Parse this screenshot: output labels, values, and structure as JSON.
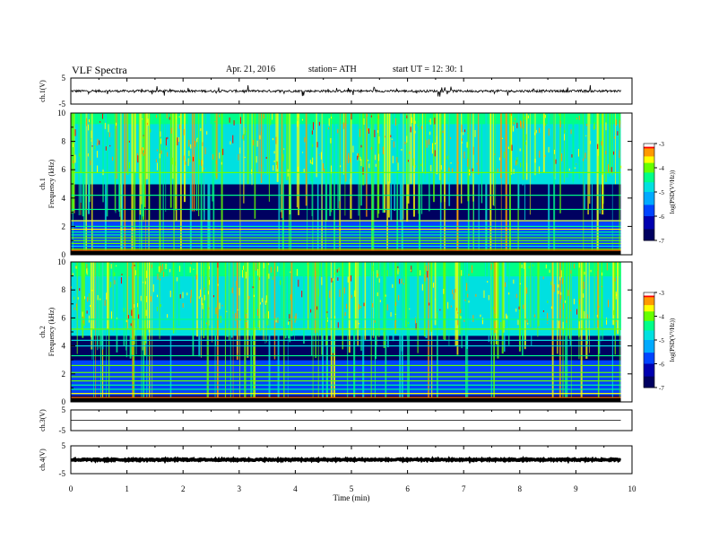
{
  "header": {
    "title": "VLF  Spectra",
    "date": "Apr. 21, 2016",
    "station": "station= ATH",
    "start": "start  UT  =    12: 30: 1"
  },
  "colors": {
    "colormap": [
      "#000066",
      "#0000cc",
      "#0066ff",
      "#00ccff",
      "#00ff99",
      "#66ff00",
      "#ffff00",
      "#ff9900",
      "#ff0000",
      "#ff9999",
      "#ffffff"
    ]
  },
  "chart_data": [
    {
      "type": "line",
      "name": "ch1-waveform",
      "ylabel": "ch.1(V)",
      "ylim": [
        -5,
        5
      ],
      "yticks": [
        "5",
        "-5"
      ],
      "xlim": [
        0,
        10
      ],
      "baseline": 0,
      "note_values": "noisy trace centered near 0 V, spikes to about +2 / -2"
    },
    {
      "type": "heatmap",
      "name": "ch1-spectrogram",
      "ylabel": "ch.1\nFrequency  (kHz)",
      "ylabel_line1": "ch.1",
      "ylabel_line2": "Frequency  (kHz)",
      "ylim": [
        0,
        10
      ],
      "yticks": [
        "0",
        "2",
        "4",
        "6",
        "8",
        "10"
      ],
      "xlim": [
        0,
        10
      ],
      "clim": [
        -7,
        -3
      ],
      "cbar_ticks": [
        "-3",
        "-4",
        "-5",
        "-6",
        "-7"
      ],
      "cbar_label": "log(PSD(V²/Hz))",
      "horizontal_lines_khz": [
        0.2,
        0.4,
        0.6,
        0.8,
        1.0,
        1.2,
        1.4,
        1.6,
        1.8,
        2.0,
        2.4,
        3.2,
        4.2,
        5.8
      ],
      "quiet_band_khz": [
        2.3,
        5.2
      ]
    },
    {
      "type": "heatmap",
      "name": "ch2-spectrogram",
      "ylabel_line1": "ch.2",
      "ylabel_line2": "Frequency  (kHz)",
      "ylim": [
        0,
        10
      ],
      "yticks": [
        "0",
        "2",
        "4",
        "6",
        "8",
        "10"
      ],
      "xlim": [
        0,
        10
      ],
      "clim": [
        -7,
        -3
      ],
      "cbar_ticks": [
        "-3",
        "-4",
        "-5",
        "-6",
        "-7"
      ],
      "cbar_label": "log(PSD(V²/Hz))",
      "horizontal_lines_khz": [
        0.3,
        0.6,
        0.9,
        1.2,
        1.5,
        1.8,
        2.1,
        2.6,
        3.3,
        4.0,
        4.4,
        5.2,
        5.9
      ],
      "quiet_band_khz": [
        3.0,
        4.8
      ]
    },
    {
      "type": "line",
      "name": "ch3-waveform",
      "ylabel": "ch.3(V)",
      "ylim": [
        -5,
        5
      ],
      "yticks": [
        "5",
        "-5"
      ],
      "xlim": [
        0,
        10
      ],
      "baseline": 0
    },
    {
      "type": "line",
      "name": "ch4-waveform",
      "ylabel": "ch.4(V)",
      "ylim": [
        -5,
        5
      ],
      "yticks": [
        "5",
        "-5"
      ],
      "xlim": [
        0,
        10
      ],
      "baseline": 0
    }
  ],
  "xaxis": {
    "label": "Time  (min)",
    "ticks": [
      "0",
      "1",
      "2",
      "3",
      "4",
      "5",
      "6",
      "7",
      "8",
      "9",
      "10"
    ],
    "data_end_min": 9.8
  }
}
